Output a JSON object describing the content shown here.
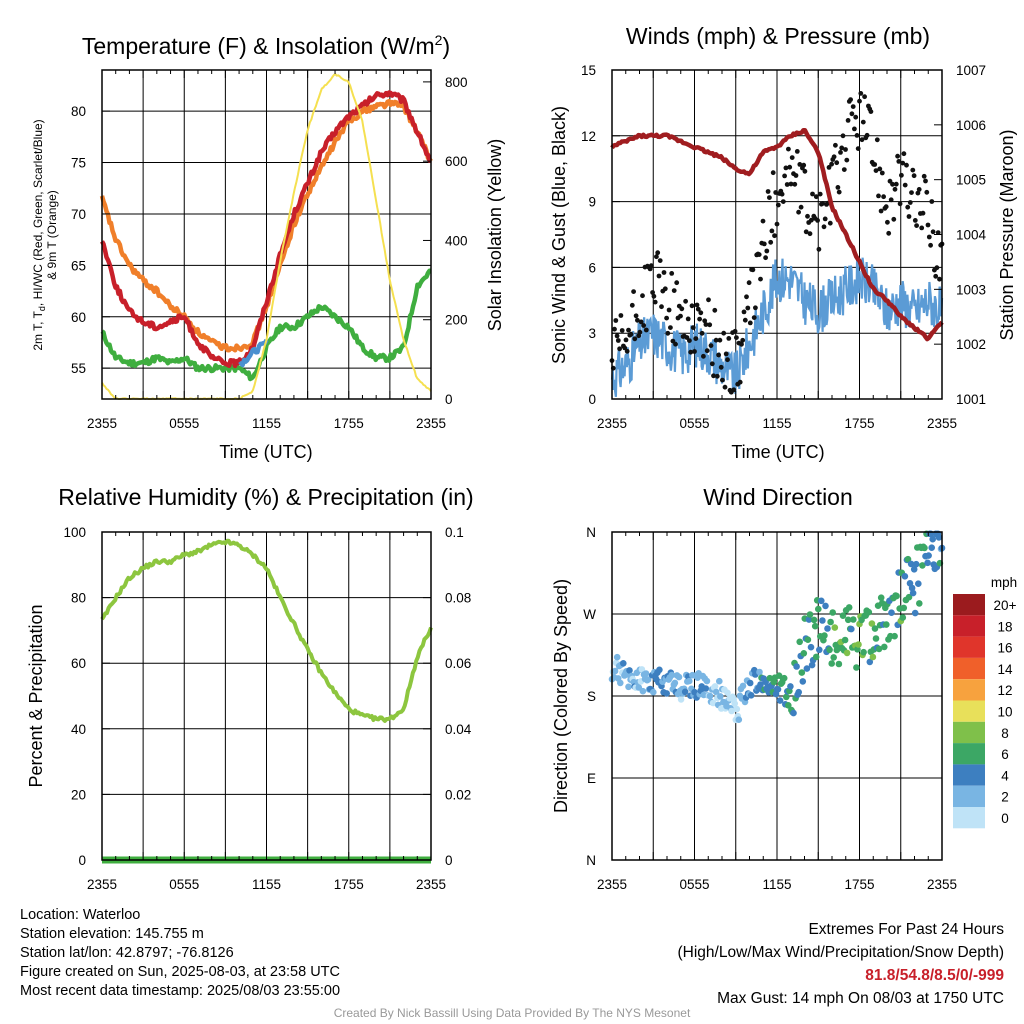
{
  "charts": {
    "temp": {
      "title": "Temperature (F) & Insolation (W/m²)",
      "xlabel": "Time (UTC)",
      "ylabel_left_lines": [
        "2m T, Td, HI/WC (Red, Green, Scarlet/Blue)",
        "& 9m T (Orange)"
      ],
      "ylabel_right": "Solar Insolation (Yellow)",
      "x_ticks": [
        "2355",
        "0555",
        "1155",
        "1755",
        "2355"
      ],
      "y_ticks_left": [
        "55",
        "60",
        "65",
        "70",
        "75",
        "80"
      ],
      "y_ticks_right": [
        "0",
        "200",
        "400",
        "600",
        "800"
      ]
    },
    "wind": {
      "title": "Winds (mph) & Pressure (mb)",
      "xlabel": "Time (UTC)",
      "ylabel_left": "Sonic Wind & Gust (Blue, Black)",
      "ylabel_right": "Station Pressure (Maroon)",
      "x_ticks": [
        "2355",
        "0555",
        "1155",
        "1755",
        "2355"
      ],
      "y_ticks_left": [
        "0",
        "3",
        "6",
        "9",
        "12",
        "15"
      ],
      "y_ticks_right": [
        "1001",
        "1002",
        "1003",
        "1004",
        "1005",
        "1006",
        "1007"
      ]
    },
    "rh": {
      "title": "Relative Humidity (%) & Precipitation (in)",
      "ylabel_left": "Percent & Precipitation",
      "x_ticks": [
        "2355",
        "0555",
        "1155",
        "1755",
        "2355"
      ],
      "y_ticks_left": [
        "0",
        "20",
        "40",
        "60",
        "80",
        "100"
      ],
      "y_ticks_right": [
        "0.00",
        "0.02",
        "0.04",
        "0.06",
        "0.08",
        "0.10"
      ]
    },
    "wdir": {
      "title": "Wind Direction",
      "ylabel_left": "Direction (Colored By Speed)",
      "x_ticks": [
        "2355",
        "0555",
        "1155",
        "1755",
        "2355"
      ],
      "y_ticks_left": [
        "N",
        "E",
        "S",
        "W",
        "N"
      ],
      "legend_title": "mph",
      "legend_labels": [
        "20+",
        "18",
        "16",
        "14",
        "12",
        "10",
        "8",
        "6",
        "4",
        "2",
        "0"
      ]
    }
  },
  "chart_data": [
    {
      "type": "line",
      "title": "Temperature (F) & Insolation (W/m²)",
      "xlabel": "Time (UTC)",
      "ylim": [
        52,
        84
      ],
      "y2lim": [
        0,
        830
      ],
      "x_hours": [
        0,
        1,
        2,
        3,
        4,
        5,
        6,
        7,
        8,
        9,
        10,
        11,
        12,
        13,
        14,
        15,
        16,
        17,
        18,
        19,
        20,
        21,
        22,
        23,
        24
      ],
      "series": [
        {
          "key": "temp_2m",
          "color": "#c8202a",
          "axis": "left",
          "values": [
            67.5,
            63,
            60.5,
            59.5,
            59,
            59.5,
            60,
            57.5,
            56,
            55.5,
            55.5,
            57,
            61.5,
            66,
            70,
            73,
            76,
            78,
            79.5,
            80.5,
            81.5,
            81.8,
            81,
            78,
            75
          ]
        },
        {
          "key": "temp_9m",
          "color": "#f07f2a",
          "axis": "left",
          "values": [
            71.5,
            67.5,
            65,
            63.5,
            62.5,
            61,
            60,
            58.5,
            57.5,
            57,
            57,
            57.5,
            61,
            65,
            69,
            72,
            74.5,
            77,
            79,
            80,
            80.5,
            80.8,
            80.5,
            78,
            75
          ]
        },
        {
          "key": "dewpoint",
          "color": "#3fae3f",
          "axis": "left",
          "values": [
            58.5,
            56,
            55.5,
            55.5,
            56,
            55.5,
            56,
            55,
            55,
            55,
            55,
            54,
            57,
            59,
            59,
            60,
            61,
            60,
            59,
            57,
            56,
            56,
            57,
            63,
            64.5
          ]
        },
        {
          "key": "heat_index",
          "color": "#4a90d0",
          "axis": "left",
          "values": [
            null,
            null,
            null,
            null,
            null,
            null,
            null,
            null,
            null,
            null,
            55.3,
            56.5,
            57.5,
            null,
            null,
            null,
            null,
            null,
            null,
            null,
            null,
            null,
            null,
            null,
            null
          ]
        },
        {
          "key": "solar",
          "color": "#f5e050",
          "axis": "right",
          "values": [
            40,
            0,
            0,
            0,
            0,
            0,
            0,
            0,
            0,
            0,
            0,
            20,
            150,
            350,
            520,
            680,
            780,
            820,
            800,
            700,
            500,
            300,
            150,
            50,
            20
          ]
        }
      ]
    },
    {
      "type": "line",
      "title": "Winds (mph) & Pressure (mb)",
      "xlabel": "Time (UTC)",
      "ylim": [
        0,
        15
      ],
      "y2lim": [
        1001,
        1007
      ],
      "x_hours": [
        0,
        1,
        2,
        3,
        4,
        5,
        6,
        7,
        8,
        9,
        10,
        11,
        12,
        13,
        14,
        15,
        16,
        17,
        18,
        19,
        20,
        21,
        22,
        23,
        24
      ],
      "series": [
        {
          "key": "wind_speed",
          "color": "#5b9bd5",
          "axis": "left",
          "values": [
            1.0,
            1.5,
            2.5,
            3.0,
            2.5,
            2.0,
            2.5,
            2.2,
            1.5,
            1.0,
            2.5,
            4.0,
            5.5,
            5.5,
            4.5,
            4.0,
            4.5,
            5.0,
            5.5,
            5.0,
            4.0,
            4.5,
            4.0,
            4.5,
            4.0
          ]
        },
        {
          "key": "gust",
          "color": "#111111",
          "axis": "left",
          "style": "points",
          "values": [
            1.8,
            2.5,
            4.0,
            5.5,
            4.5,
            3.5,
            3.5,
            3.0,
            2.0,
            1.5,
            4.0,
            7.0,
            9.5,
            10.5,
            9.0,
            8.0,
            9.5,
            12.0,
            13.0,
            11.5,
            9.0,
            10.0,
            9.0,
            8.5,
            6.0
          ]
        },
        {
          "key": "pressure",
          "color": "#a01d20",
          "axis": "right",
          "values": [
            1005.6,
            1005.7,
            1005.8,
            1005.8,
            1005.8,
            1005.7,
            1005.6,
            1005.5,
            1005.4,
            1005.2,
            1005.1,
            1005.5,
            1005.6,
            1005.8,
            1005.9,
            1005.5,
            1004.5,
            1004.0,
            1003.5,
            1003.0,
            1002.8,
            1002.5,
            1002.3,
            1002.1,
            1002.4
          ]
        }
      ]
    },
    {
      "type": "line",
      "title": "Relative Humidity (%) & Precipitation (in)",
      "ylim": [
        0,
        100
      ],
      "y2lim": [
        0,
        0.1
      ],
      "x_hours": [
        0,
        1,
        2,
        3,
        4,
        5,
        6,
        7,
        8,
        9,
        10,
        11,
        12,
        13,
        14,
        15,
        16,
        17,
        18,
        19,
        20,
        21,
        22,
        23,
        24
      ],
      "series": [
        {
          "key": "rh",
          "color": "#8dc63f",
          "axis": "left",
          "values": [
            73,
            80,
            86,
            89,
            91,
            91,
            93,
            94,
            96,
            97,
            96,
            93,
            89,
            80,
            72,
            64,
            57,
            51,
            46,
            44,
            43,
            43,
            46,
            62,
            71
          ]
        },
        {
          "key": "precip",
          "color": "#3fae3f",
          "axis": "right",
          "values": [
            0,
            0,
            0,
            0,
            0,
            0,
            0,
            0,
            0,
            0,
            0,
            0,
            0,
            0,
            0,
            0,
            0,
            0,
            0,
            0,
            0,
            0,
            0,
            0,
            0
          ]
        }
      ]
    },
    {
      "type": "scatter",
      "title": "Wind Direction",
      "ylim_degrees": [
        0,
        360
      ],
      "color_scale_mph": [
        {
          "label": "20+",
          "color": "#9b1b1e"
        },
        {
          "label": "18",
          "color": "#c8202a"
        },
        {
          "label": "16",
          "color": "#e0352b"
        },
        {
          "label": "14",
          "color": "#f0602a"
        },
        {
          "label": "12",
          "color": "#f7a23e"
        },
        {
          "label": "10",
          "color": "#e8e05a"
        },
        {
          "label": "8",
          "color": "#7fc04a"
        },
        {
          "label": "6",
          "color": "#3ca765"
        },
        {
          "label": "4",
          "color": "#3d7fc0"
        },
        {
          "label": "2",
          "color": "#79b5e3"
        },
        {
          "label": "0",
          "color": "#bfe3f7"
        }
      ],
      "x_hours": [
        0,
        1,
        2,
        3,
        4,
        5,
        6,
        7,
        8,
        9,
        10,
        11,
        12,
        13,
        14,
        15,
        16,
        17,
        18,
        19,
        20,
        21,
        22,
        23,
        24
      ],
      "direction_deg": [
        210,
        205,
        200,
        195,
        195,
        190,
        190,
        190,
        180,
        160,
        195,
        195,
        190,
        180,
        230,
        260,
        250,
        250,
        240,
        250,
        260,
        290,
        300,
        345,
        355
      ],
      "speed_mph": [
        1,
        2,
        2,
        3,
        3,
        2,
        3,
        2,
        1,
        1,
        3,
        4,
        5,
        5,
        5,
        4,
        6,
        6,
        7,
        6,
        5,
        6,
        5,
        5,
        4
      ]
    }
  ],
  "footer": {
    "location": "Location: Waterloo",
    "elevation": "Station elevation: 145.755 m",
    "latlon": "Station lat/lon: 42.8797; -76.8126",
    "created": "Figure created on Sun, 2025-08-03, at 23:58 UTC",
    "recent": "Most recent data timestamp: 2025/08/03 23:55:00",
    "extremes_title": "Extremes For Past 24 Hours",
    "extremes_sub": "(High/Low/Max Wind/Precipitation/Snow Depth)",
    "extremes_values": "81.8/54.8/8.5/0/-999",
    "max_gust": "Max Gust: 14 mph On 08/03 at 1750 UTC",
    "credit": "Created By Nick Bassill Using Data Provided By The NYS Mesonet"
  }
}
